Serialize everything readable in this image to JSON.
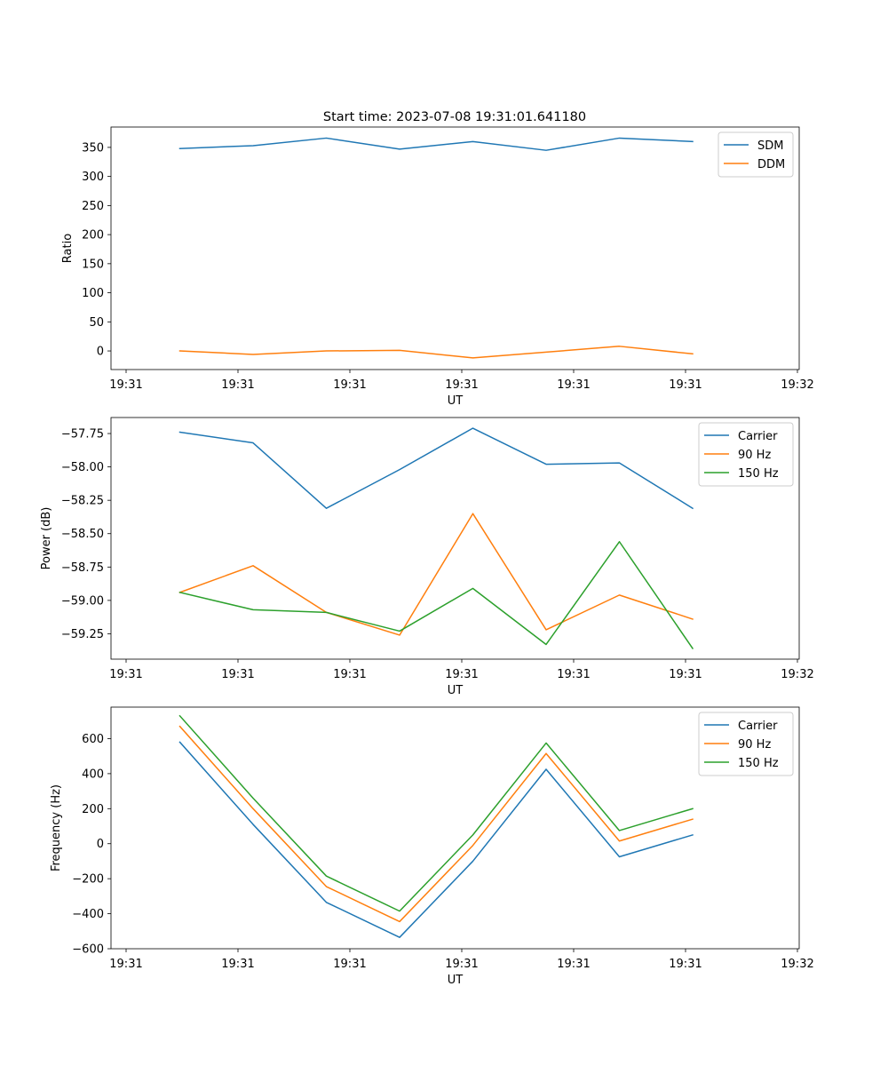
{
  "figure_title": "Start time: 2023-07-08 19:31:01.641180",
  "chart_data": [
    {
      "type": "line",
      "title": "Start time: 2023-07-08 19:31:01.641180",
      "xlabel": "UT",
      "ylabel": "Ratio",
      "xticklabels": [
        "19:31",
        "19:31",
        "19:31",
        "19:31",
        "19:31",
        "19:31",
        "19:32"
      ],
      "x": [
        0.48,
        1.14,
        1.8,
        2.46,
        3.12,
        3.78,
        4.44,
        5.1
      ],
      "xlim": [
        -0.14,
        6.06
      ],
      "ylim": [
        -32,
        385
      ],
      "yticks": [
        0,
        50,
        100,
        150,
        200,
        250,
        300,
        350
      ],
      "yticklabels": [
        "0",
        "50",
        "100",
        "150",
        "200",
        "250",
        "300",
        "350"
      ],
      "legend_loc": "upper right",
      "series": [
        {
          "name": "SDM",
          "color": "#1f77b4",
          "values": [
            348,
            353,
            366,
            347,
            360,
            345,
            366,
            360
          ]
        },
        {
          "name": "DDM",
          "color": "#ff7f0e",
          "values": [
            0,
            -6,
            0,
            1,
            -12,
            -2,
            8,
            -5
          ]
        }
      ]
    },
    {
      "type": "line",
      "xlabel": "UT",
      "ylabel": "Power (dB)",
      "xticklabels": [
        "19:31",
        "19:31",
        "19:31",
        "19:31",
        "19:31",
        "19:31",
        "19:32"
      ],
      "x": [
        0.48,
        1.14,
        1.8,
        2.46,
        3.12,
        3.78,
        4.44,
        5.1
      ],
      "xlim": [
        -0.14,
        6.06
      ],
      "ylim": [
        -59.44,
        -57.63
      ],
      "yticks": [
        -59.25,
        -59.0,
        -58.75,
        -58.5,
        -58.25,
        -58.0,
        -57.75
      ],
      "yticklabels": [
        "−59.25",
        "−59.00",
        "−58.75",
        "−58.50",
        "−58.25",
        "−58.00",
        "−57.75"
      ],
      "legend_loc": "upper right",
      "series": [
        {
          "name": "Carrier",
          "color": "#1f77b4",
          "values": [
            -57.74,
            -57.82,
            -58.31,
            -58.02,
            -57.71,
            -57.98,
            -57.97,
            -58.31
          ]
        },
        {
          "name": "90 Hz",
          "color": "#ff7f0e",
          "values": [
            -58.94,
            -58.74,
            -59.09,
            -59.26,
            -58.35,
            -59.22,
            -58.96,
            -59.14
          ]
        },
        {
          "name": "150 Hz",
          "color": "#2ca02c",
          "values": [
            -58.94,
            -59.07,
            -59.09,
            -59.23,
            -58.91,
            -59.33,
            -58.56,
            -59.36
          ]
        }
      ]
    },
    {
      "type": "line",
      "xlabel": "UT",
      "ylabel": "Frequency (Hz)",
      "xticklabels": [
        "19:31",
        "19:31",
        "19:31",
        "19:31",
        "19:31",
        "19:31",
        "19:32"
      ],
      "x": [
        0.48,
        1.14,
        1.8,
        2.46,
        3.12,
        3.78,
        4.44,
        5.1
      ],
      "xlim": [
        -0.14,
        6.06
      ],
      "ylim": [
        -600,
        780
      ],
      "yticks": [
        -600,
        -400,
        -200,
        0,
        200,
        400,
        600
      ],
      "yticklabels": [
        "−600",
        "−400",
        "−200",
        "0",
        "200",
        "400",
        "600"
      ],
      "legend_loc": "upper right",
      "series": [
        {
          "name": "Carrier",
          "color": "#1f77b4",
          "values": [
            580,
            110,
            -335,
            -535,
            -100,
            425,
            -75,
            50
          ]
        },
        {
          "name": "90 Hz",
          "color": "#ff7f0e",
          "values": [
            670,
            200,
            -245,
            -445,
            -10,
            515,
            15,
            140
          ]
        },
        {
          "name": "150 Hz",
          "color": "#2ca02c",
          "values": [
            730,
            260,
            -185,
            -385,
            50,
            575,
            75,
            200
          ]
        }
      ]
    }
  ]
}
